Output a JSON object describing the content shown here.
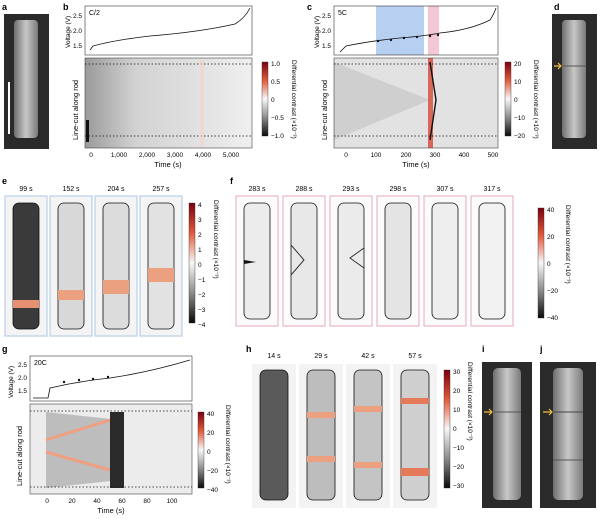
{
  "panels": {
    "a": {
      "letter": "a"
    },
    "b": {
      "letter": "b",
      "rate": "C/2",
      "ylabel_top": "Voltage (V)",
      "yticks_top": [
        "2.5",
        "2.0",
        "1.5"
      ],
      "ylabel_bottom": "Line-cut along rod",
      "xlabel": "Time (s)",
      "xticks": [
        "0",
        "1,000",
        "2,000",
        "3,000",
        "4,000",
        "5,000"
      ],
      "cbar_ticks": [
        "1.0",
        "0.5",
        "0",
        "−0.5",
        "−1.0"
      ],
      "cbar_label": "Differential contrast (×10⁻³)"
    },
    "c": {
      "letter": "c",
      "rate": "5C",
      "ylabel_top": "Voltage (V)",
      "yticks_top": [
        "2.5",
        "2.0",
        "1.5"
      ],
      "ylabel_bottom": "Line-cut along rod",
      "xlabel": "Time (s)",
      "xticks": [
        "0",
        "100",
        "200",
        "300",
        "400",
        "500"
      ],
      "cbar_ticks": [
        "20",
        "10",
        "0",
        "−10",
        "−20"
      ],
      "cbar_label": "Differential contrast (×10⁻³)"
    },
    "d": {
      "letter": "d"
    },
    "e": {
      "letter": "e",
      "times": [
        "99 s",
        "152 s",
        "204 s",
        "257 s"
      ],
      "cbar_ticks": [
        "4",
        "3",
        "2",
        "1",
        "0",
        "−1",
        "−2",
        "−3",
        "−4"
      ],
      "cbar_label": "Differential contrast (×10⁻³)"
    },
    "f": {
      "letter": "f",
      "times": [
        "283 s",
        "288 s",
        "293 s",
        "298 s",
        "307 s",
        "317 s"
      ],
      "cbar_ticks": [
        "40",
        "20",
        "0",
        "−20",
        "−40"
      ],
      "cbar_label": "Differential contrast (×10⁻³)"
    },
    "g": {
      "letter": "g",
      "rate": "20C",
      "ylabel_top": "Voltage (V)",
      "yticks_top": [
        "2.5",
        "2.0",
        "1.5"
      ],
      "ylabel_bottom": "Line-cut along rod",
      "xlabel": "Time (s)",
      "xticks": [
        "0",
        "20",
        "40",
        "60",
        "80",
        "100"
      ],
      "cbar_ticks": [
        "40",
        "20",
        "0",
        "−20",
        "−40"
      ],
      "cbar_label": "Differential contrast (×10⁻³)"
    },
    "h": {
      "letter": "h",
      "times": [
        "14 s",
        "29 s",
        "42 s",
        "57 s"
      ],
      "cbar_ticks": [
        "30",
        "20",
        "10",
        "0",
        "−10",
        "−20",
        "−30"
      ],
      "cbar_label": "Differential contrast (×10⁻³)"
    },
    "i": {
      "letter": "i"
    },
    "j": {
      "letter": "j"
    }
  },
  "colors": {
    "red": "#d7301f",
    "blue_band": "#aac8f0",
    "pink_band": "#f2c2cf",
    "frame_blue": "#b9cfe8",
    "frame_pink": "#e9b8c4"
  }
}
